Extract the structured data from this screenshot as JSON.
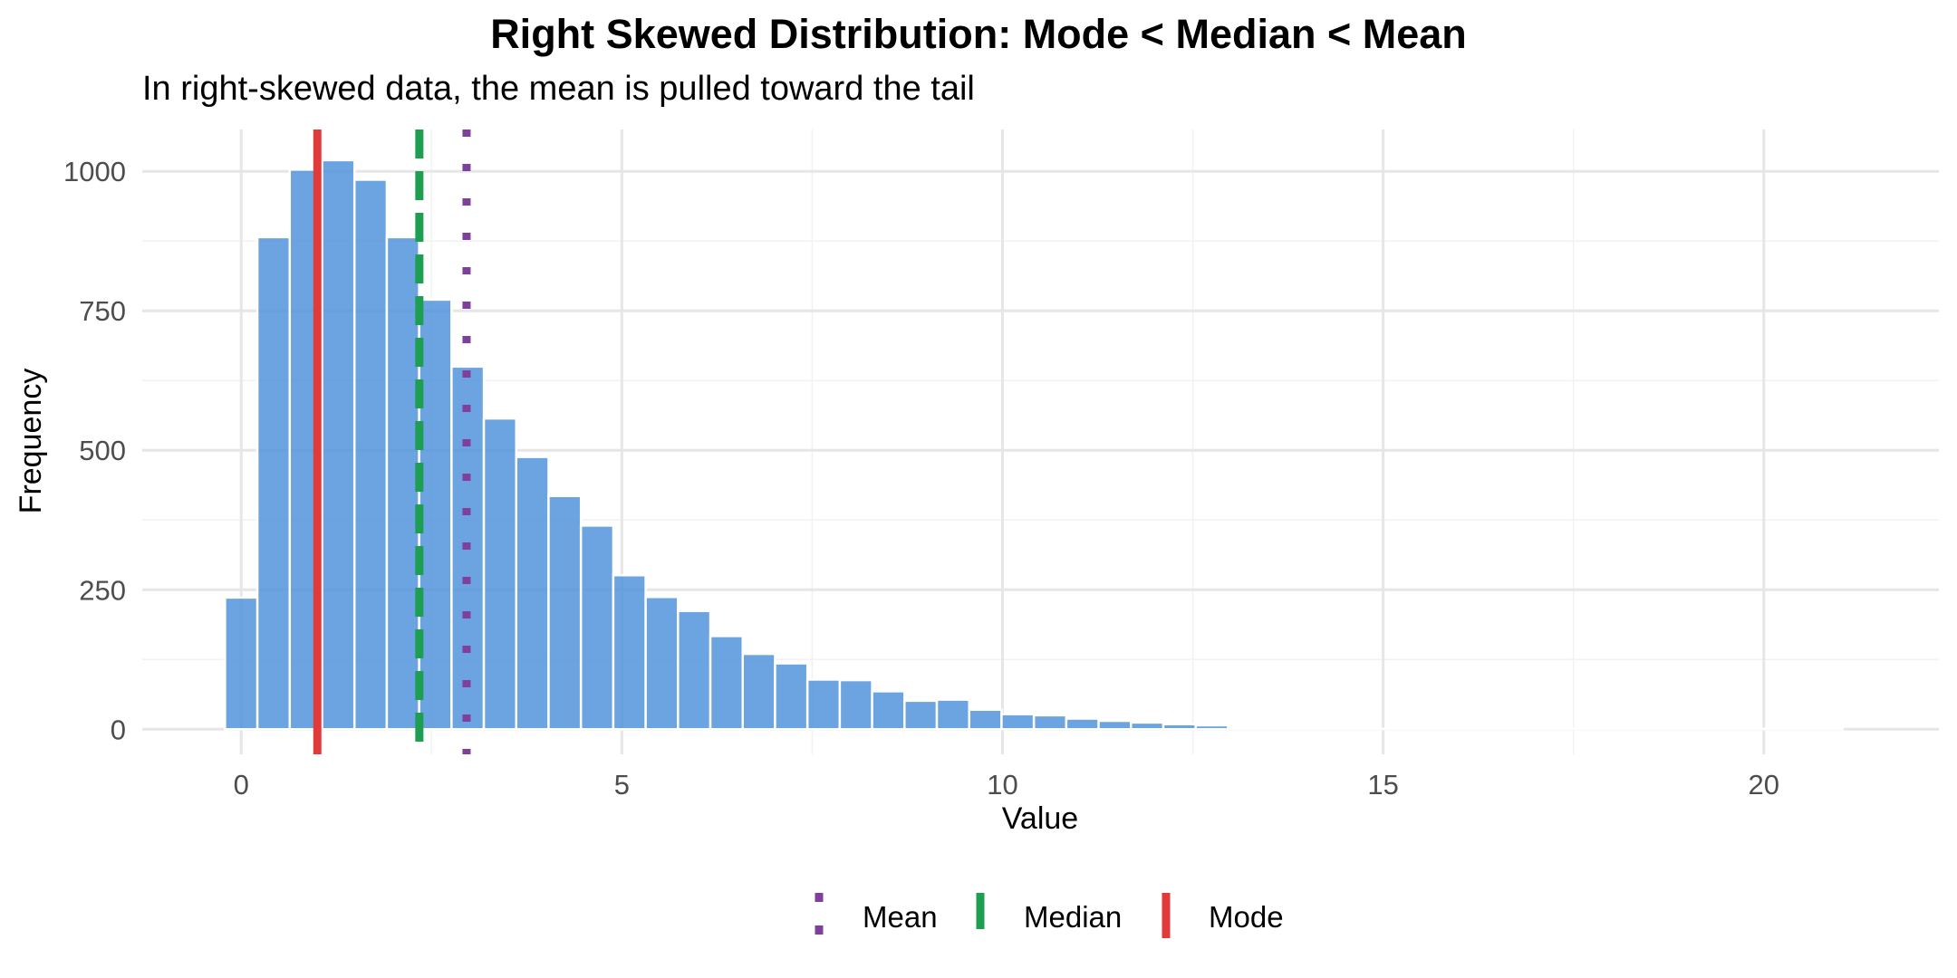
{
  "chart_data": {
    "type": "bar",
    "title": "Right Skewed Distribution: Mode < Median < Mean",
    "subtitle": "In right-skewed data, the mean is pulled toward the tail",
    "xlabel": "Value",
    "ylabel": "Frequency",
    "xlim": [
      -1.3,
      22.3
    ],
    "ylim": [
      -45,
      1075
    ],
    "x_ticks": [
      0,
      5,
      10,
      15,
      20
    ],
    "y_ticks": [
      0,
      250,
      500,
      750,
      1000
    ],
    "grid": true,
    "bin_width": 0.425,
    "series": [
      {
        "bin_centers": [
          0.0,
          0.425,
          0.85,
          1.275,
          1.7,
          2.125,
          2.55,
          2.975,
          3.4,
          3.825,
          4.25,
          4.675,
          5.1,
          5.525,
          5.95,
          6.375,
          6.8,
          7.225,
          7.65,
          8.075,
          8.5,
          8.925,
          9.35,
          9.775,
          10.2,
          10.625,
          11.05,
          11.475,
          11.9,
          12.325,
          12.75,
          13.175,
          13.6,
          14.025,
          14.45,
          14.875,
          15.3,
          15.725,
          16.15,
          16.575,
          17.0,
          17.425,
          17.85,
          18.275,
          18.7,
          19.125,
          19.55,
          19.975,
          20.4,
          20.825
        ],
        "values": [
          236,
          882,
          1003,
          1020,
          985,
          882,
          770,
          650,
          557,
          488,
          418,
          365,
          276,
          237,
          212,
          167,
          135,
          118,
          89,
          88,
          68,
          51,
          53,
          35,
          27,
          25,
          19,
          15,
          12,
          9,
          7,
          3,
          2,
          3,
          1,
          1,
          1,
          1,
          1,
          1,
          1,
          1,
          1,
          1,
          1,
          1,
          1,
          1,
          1,
          1
        ],
        "color": "#4A90D9"
      }
    ],
    "reference_lines": [
      {
        "name": "Mean",
        "value": 2.96,
        "color": "#7E3F9D",
        "style": "dotted"
      },
      {
        "name": "Median",
        "value": 2.34,
        "color": "#1E9E50",
        "style": "dashed"
      },
      {
        "name": "Mode",
        "value": 1.0,
        "color": "#E03A3A",
        "style": "solid"
      }
    ],
    "legend": {
      "position": "bottom",
      "entries": [
        "Mean",
        "Median",
        "Mode"
      ]
    }
  }
}
